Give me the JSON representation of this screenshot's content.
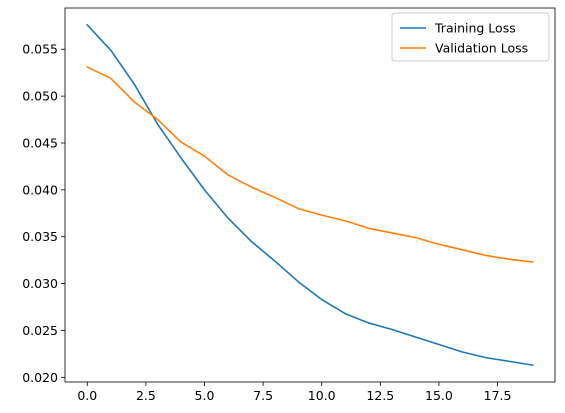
{
  "chart_data": {
    "type": "line",
    "title": "",
    "xlabel": "",
    "ylabel": "",
    "x": [
      0,
      1,
      2,
      3,
      4,
      5,
      6,
      7,
      8,
      9,
      10,
      11,
      12,
      13,
      14,
      15,
      16,
      17,
      18,
      19
    ],
    "series": [
      {
        "name": "Training Loss",
        "color": "#1f77b4",
        "values": [
          0.0576,
          0.0549,
          0.0513,
          0.047,
          0.0434,
          0.04,
          0.037,
          0.0345,
          0.0324,
          0.0302,
          0.0283,
          0.0268,
          0.0258,
          0.0251,
          0.0243,
          0.0235,
          0.0227,
          0.0221,
          0.0217,
          0.0213
        ]
      },
      {
        "name": "Validation Loss",
        "color": "#ff7f0e",
        "values": [
          0.0531,
          0.0519,
          0.0494,
          0.0475,
          0.0451,
          0.0436,
          0.0416,
          0.0403,
          0.0392,
          0.038,
          0.0373,
          0.0367,
          0.0359,
          0.0354,
          0.0349,
          0.0342,
          0.0336,
          0.033,
          0.0326,
          0.0323
        ]
      }
    ],
    "xlim": [
      -0.95,
      19.95
    ],
    "ylim": [
      0.0195,
      0.0594
    ],
    "xticks": [
      0.0,
      2.5,
      5.0,
      7.5,
      10.0,
      12.5,
      15.0,
      17.5
    ],
    "xtick_labels": [
      "0.0",
      "2.5",
      "5.0",
      "7.5",
      "10.0",
      "12.5",
      "15.0",
      "17.5"
    ],
    "yticks": [
      0.02,
      0.025,
      0.03,
      0.035,
      0.04,
      0.045,
      0.05,
      0.055
    ],
    "ytick_labels": [
      "0.020",
      "0.025",
      "0.030",
      "0.035",
      "0.040",
      "0.045",
      "0.050",
      "0.055"
    ],
    "grid": false,
    "legend_position": "top-right"
  }
}
